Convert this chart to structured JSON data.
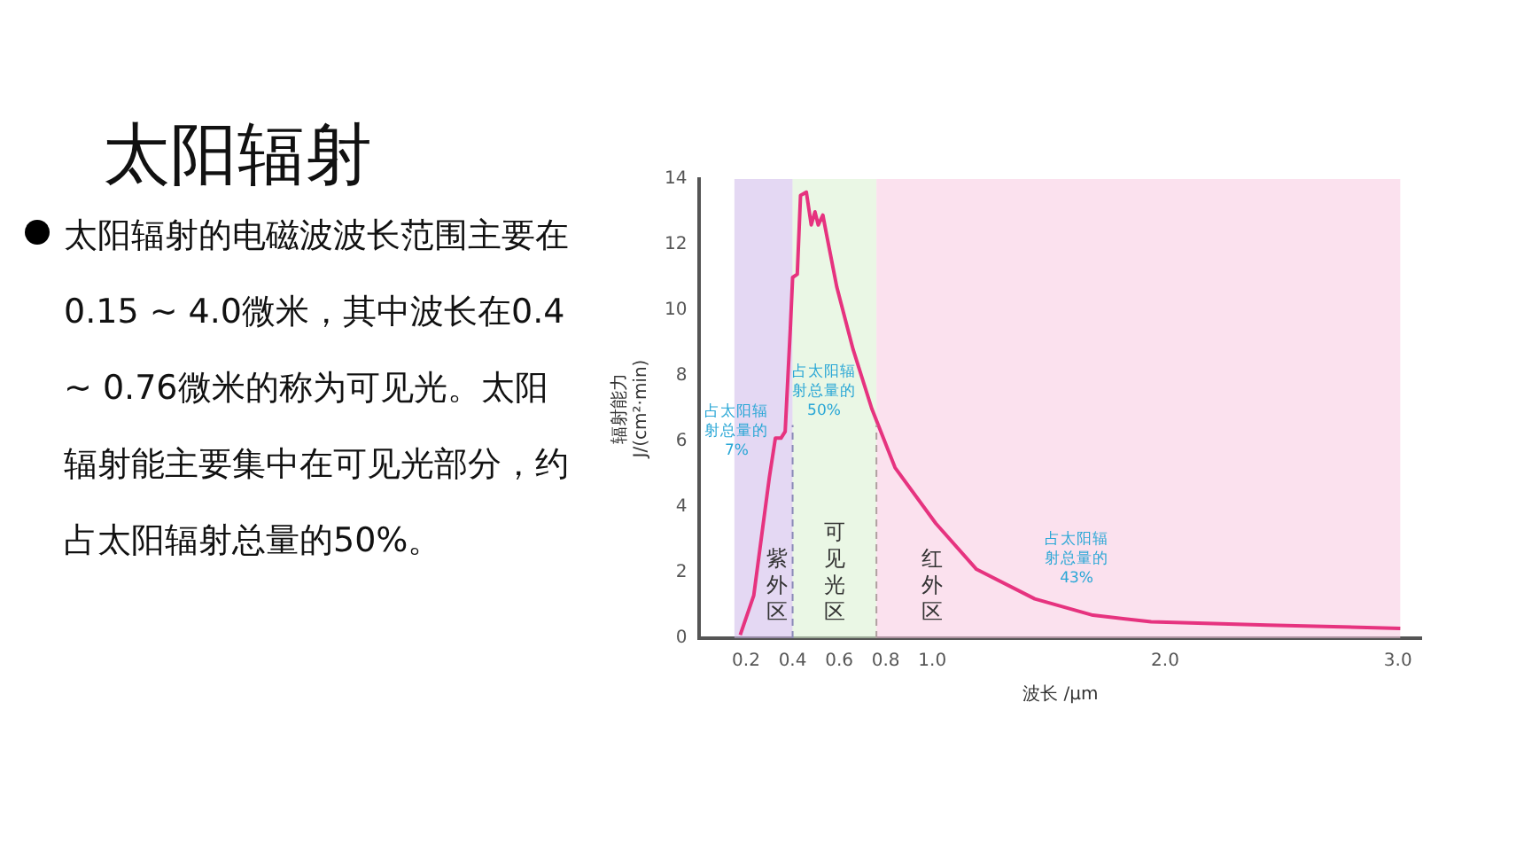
{
  "chart_data": {
    "type": "line",
    "title": "太阳辐射",
    "subtitle": "太阳辐射的电磁波波长范围主要在0.15 ~ 4.0微米，其中波长在0.4 ~ 0.76微米的称为可见光。太阳辐射能主要集中在可见光部分，约占太阳辐射总量的50%。",
    "xlabel": "波长 /μm",
    "ylabel": "辐射能力\nJ/(cm²·min)",
    "annotations": [
      "占太阳辐射总量的7%",
      "占太阳辐射总量的50%",
      "占太阳辐射总量的43%"
    ],
    "x": [
      0.175,
      0.233,
      0.3,
      0.326,
      0.35,
      0.368,
      0.39,
      0.4,
      0.42,
      0.434,
      0.459,
      0.48,
      0.496,
      0.51,
      0.53,
      0.546,
      0.59,
      0.66,
      0.74,
      0.84,
      1.015,
      1.19,
      1.44,
      1.69,
      1.94,
      2.44,
      3.01
    ],
    "series": [
      {
        "color": "#e6337f",
        "values": [
          0.1,
          1.3,
          4.9,
          6.1,
          6.1,
          6.3,
          9.4,
          11.0,
          11.1,
          13.5,
          13.6,
          12.6,
          13.0,
          12.6,
          12.9,
          12.3,
          10.7,
          8.8,
          7.0,
          5.2,
          3.5,
          2.1,
          1.2,
          0.7,
          0.5,
          0.4,
          0.3
        ]
      }
    ],
    "bands": [
      {
        "axis": "x",
        "from": 0.15,
        "to": 0.4,
        "label": "紫外区",
        "color": "#cdb8ea"
      },
      {
        "axis": "x",
        "from": 0.4,
        "to": 0.76,
        "label": "可见光区",
        "color": "#d8f0cf"
      },
      {
        "axis": "x",
        "from": 0.76,
        "to": 3.01,
        "label": "红外区",
        "color": "#f8c8e0"
      }
    ],
    "ref_lines": [
      {
        "axis": "x",
        "value": 0.4,
        "line_style": "dashed",
        "color": "#8a8ab8"
      },
      {
        "axis": "x",
        "value": 0.76,
        "line_style": "dashed",
        "color": "#b0a0a0"
      }
    ],
    "xlim": [
      0,
      3.1
    ],
    "xticks": [
      0.2,
      0.4,
      0.6,
      0.8,
      {
        "value": 1,
        "label": "1.0"
      },
      {
        "value": 2,
        "label": "2.0"
      },
      {
        "value": 3,
        "label": "3.0"
      }
    ],
    "ylim": [
      0,
      14
    ],
    "yticks": [
      0,
      2,
      4,
      6,
      8,
      10,
      12,
      14
    ],
    "grid": false,
    "legend": false,
    "marker": "none",
    "line_style": "solid"
  }
}
